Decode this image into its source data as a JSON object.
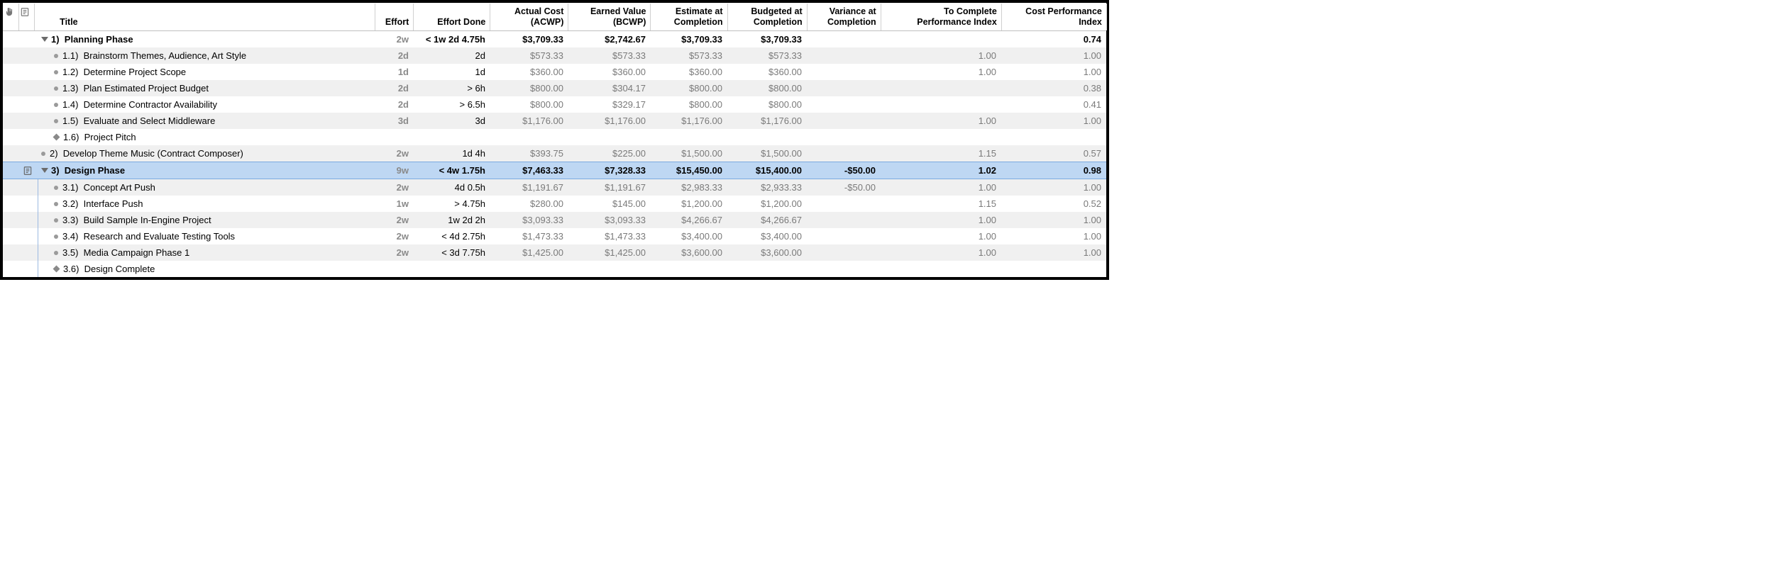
{
  "columns": {
    "title": "Title",
    "effort": "Effort",
    "effort_done": "Effort Done",
    "acwp": "Actual Cost\n(ACWP)",
    "bcwp": "Earned Value\n(BCWP)",
    "eac": "Estimate at\nCompletion",
    "bac": "Budgeted at\nCompletion",
    "vac": "Variance at\nCompletion",
    "tcpi": "To Complete\nPerformance Index",
    "cpi": "Cost Performance\nIndex"
  },
  "rows": [
    {
      "type": "parent",
      "marker": "triangle",
      "indent": 0,
      "outline": "1)",
      "title": "Planning Phase",
      "effort": "2w",
      "done": "< 1w 2d 4.75h",
      "acwp": "$3,709.33",
      "bcwp": "$2,742.67",
      "eac": "$3,709.33",
      "bac": "$3,709.33",
      "vac": "",
      "tcpi": "",
      "cpi": "0.74",
      "selected": false,
      "has_note": false,
      "stripe": "odd"
    },
    {
      "type": "child",
      "marker": "bullet",
      "indent": 1,
      "outline": "1.1)",
      "title": "Brainstorm Themes, Audience, Art Style",
      "effort": "2d",
      "done": "2d",
      "acwp": "$573.33",
      "bcwp": "$573.33",
      "eac": "$573.33",
      "bac": "$573.33",
      "vac": "",
      "tcpi": "1.00",
      "cpi": "1.00",
      "selected": false,
      "has_note": false,
      "stripe": "even"
    },
    {
      "type": "child",
      "marker": "bullet",
      "indent": 1,
      "outline": "1.2)",
      "title": "Determine Project Scope",
      "effort": "1d",
      "done": "1d",
      "acwp": "$360.00",
      "bcwp": "$360.00",
      "eac": "$360.00",
      "bac": "$360.00",
      "vac": "",
      "tcpi": "1.00",
      "cpi": "1.00",
      "selected": false,
      "has_note": false,
      "stripe": "odd"
    },
    {
      "type": "child",
      "marker": "bullet",
      "indent": 1,
      "outline": "1.3)",
      "title": "Plan Estimated Project Budget",
      "effort": "2d",
      "done": "> 6h",
      "acwp": "$800.00",
      "bcwp": "$304.17",
      "eac": "$800.00",
      "bac": "$800.00",
      "vac": "",
      "tcpi": "",
      "cpi": "0.38",
      "selected": false,
      "has_note": false,
      "stripe": "even"
    },
    {
      "type": "child",
      "marker": "bullet",
      "indent": 1,
      "outline": "1.4)",
      "title": "Determine Contractor Availability",
      "effort": "2d",
      "done": "> 6.5h",
      "acwp": "$800.00",
      "bcwp": "$329.17",
      "eac": "$800.00",
      "bac": "$800.00",
      "vac": "",
      "tcpi": "",
      "cpi": "0.41",
      "selected": false,
      "has_note": false,
      "stripe": "odd"
    },
    {
      "type": "child",
      "marker": "bullet",
      "indent": 1,
      "outline": "1.5)",
      "title": "Evaluate and Select Middleware",
      "effort": "3d",
      "done": "3d",
      "acwp": "$1,176.00",
      "bcwp": "$1,176.00",
      "eac": "$1,176.00",
      "bac": "$1,176.00",
      "vac": "",
      "tcpi": "1.00",
      "cpi": "1.00",
      "selected": false,
      "has_note": false,
      "stripe": "even"
    },
    {
      "type": "child",
      "marker": "diamond",
      "indent": 1,
      "outline": "1.6)",
      "title": "Project Pitch",
      "effort": "",
      "done": "",
      "acwp": "",
      "bcwp": "",
      "eac": "",
      "bac": "",
      "vac": "",
      "tcpi": "",
      "cpi": "",
      "selected": false,
      "has_note": false,
      "stripe": "odd"
    },
    {
      "type": "parent2",
      "marker": "bullet",
      "indent": 0,
      "outline": "2)",
      "title": "Develop Theme Music (Contract Composer)",
      "effort": "2w",
      "done": "1d 4h",
      "acwp": "$393.75",
      "bcwp": "$225.00",
      "eac": "$1,500.00",
      "bac": "$1,500.00",
      "vac": "",
      "tcpi": "1.15",
      "cpi": "0.57",
      "selected": false,
      "has_note": false,
      "stripe": "even"
    },
    {
      "type": "parent",
      "marker": "triangle",
      "indent": 0,
      "outline": "3)",
      "title": "Design Phase",
      "effort": "9w",
      "done": "< 4w 1.75h",
      "acwp": "$7,463.33",
      "bcwp": "$7,328.33",
      "eac": "$15,450.00",
      "bac": "$15,400.00",
      "vac": "-$50.00",
      "tcpi": "1.02",
      "cpi": "0.98",
      "selected": true,
      "has_note": true,
      "stripe": "odd"
    },
    {
      "type": "child",
      "marker": "bullet",
      "indent": 1,
      "outline": "3.1)",
      "title": "Concept Art Push",
      "effort": "2w",
      "done": "4d 0.5h",
      "acwp": "$1,191.67",
      "bcwp": "$1,191.67",
      "eac": "$2,983.33",
      "bac": "$2,933.33",
      "vac": "-$50.00",
      "tcpi": "1.00",
      "cpi": "1.00",
      "selected": false,
      "has_note": false,
      "stripe": "even",
      "tree": true
    },
    {
      "type": "child",
      "marker": "bullet",
      "indent": 1,
      "outline": "3.2)",
      "title": "Interface Push",
      "effort": "1w",
      "done": "> 4.75h",
      "acwp": "$280.00",
      "bcwp": "$145.00",
      "eac": "$1,200.00",
      "bac": "$1,200.00",
      "vac": "",
      "tcpi": "1.15",
      "cpi": "0.52",
      "selected": false,
      "has_note": false,
      "stripe": "odd",
      "tree": true
    },
    {
      "type": "child",
      "marker": "bullet",
      "indent": 1,
      "outline": "3.3)",
      "title": "Build Sample In-Engine Project",
      "effort": "2w",
      "done": "1w 2d 2h",
      "acwp": "$3,093.33",
      "bcwp": "$3,093.33",
      "eac": "$4,266.67",
      "bac": "$4,266.67",
      "vac": "",
      "tcpi": "1.00",
      "cpi": "1.00",
      "selected": false,
      "has_note": false,
      "stripe": "even",
      "tree": true
    },
    {
      "type": "child",
      "marker": "bullet",
      "indent": 1,
      "outline": "3.4)",
      "title": "Research and Evaluate Testing Tools",
      "effort": "2w",
      "done": "< 4d 2.75h",
      "acwp": "$1,473.33",
      "bcwp": "$1,473.33",
      "eac": "$3,400.00",
      "bac": "$3,400.00",
      "vac": "",
      "tcpi": "1.00",
      "cpi": "1.00",
      "selected": false,
      "has_note": false,
      "stripe": "odd",
      "tree": true
    },
    {
      "type": "child",
      "marker": "bullet",
      "indent": 1,
      "outline": "3.5)",
      "title": "Media Campaign Phase 1",
      "effort": "2w",
      "done": "< 3d 7.75h",
      "acwp": "$1,425.00",
      "bcwp": "$1,425.00",
      "eac": "$3,600.00",
      "bac": "$3,600.00",
      "vac": "",
      "tcpi": "1.00",
      "cpi": "1.00",
      "selected": false,
      "has_note": false,
      "stripe": "even",
      "tree": true
    },
    {
      "type": "child",
      "marker": "diamond",
      "indent": 1,
      "outline": "3.6)",
      "title": "Design Complete",
      "effort": "",
      "done": "",
      "acwp": "",
      "bcwp": "",
      "eac": "",
      "bac": "",
      "vac": "",
      "tcpi": "",
      "cpi": "",
      "selected": false,
      "has_note": false,
      "stripe": "odd",
      "tree": true
    }
  ],
  "colors": {
    "row_even": "#f0f0f0",
    "row_odd": "#ffffff",
    "selected_bg": "#bed7f3",
    "selected_border": "#7aa9e0",
    "muted_text": "#7a7a7a"
  }
}
